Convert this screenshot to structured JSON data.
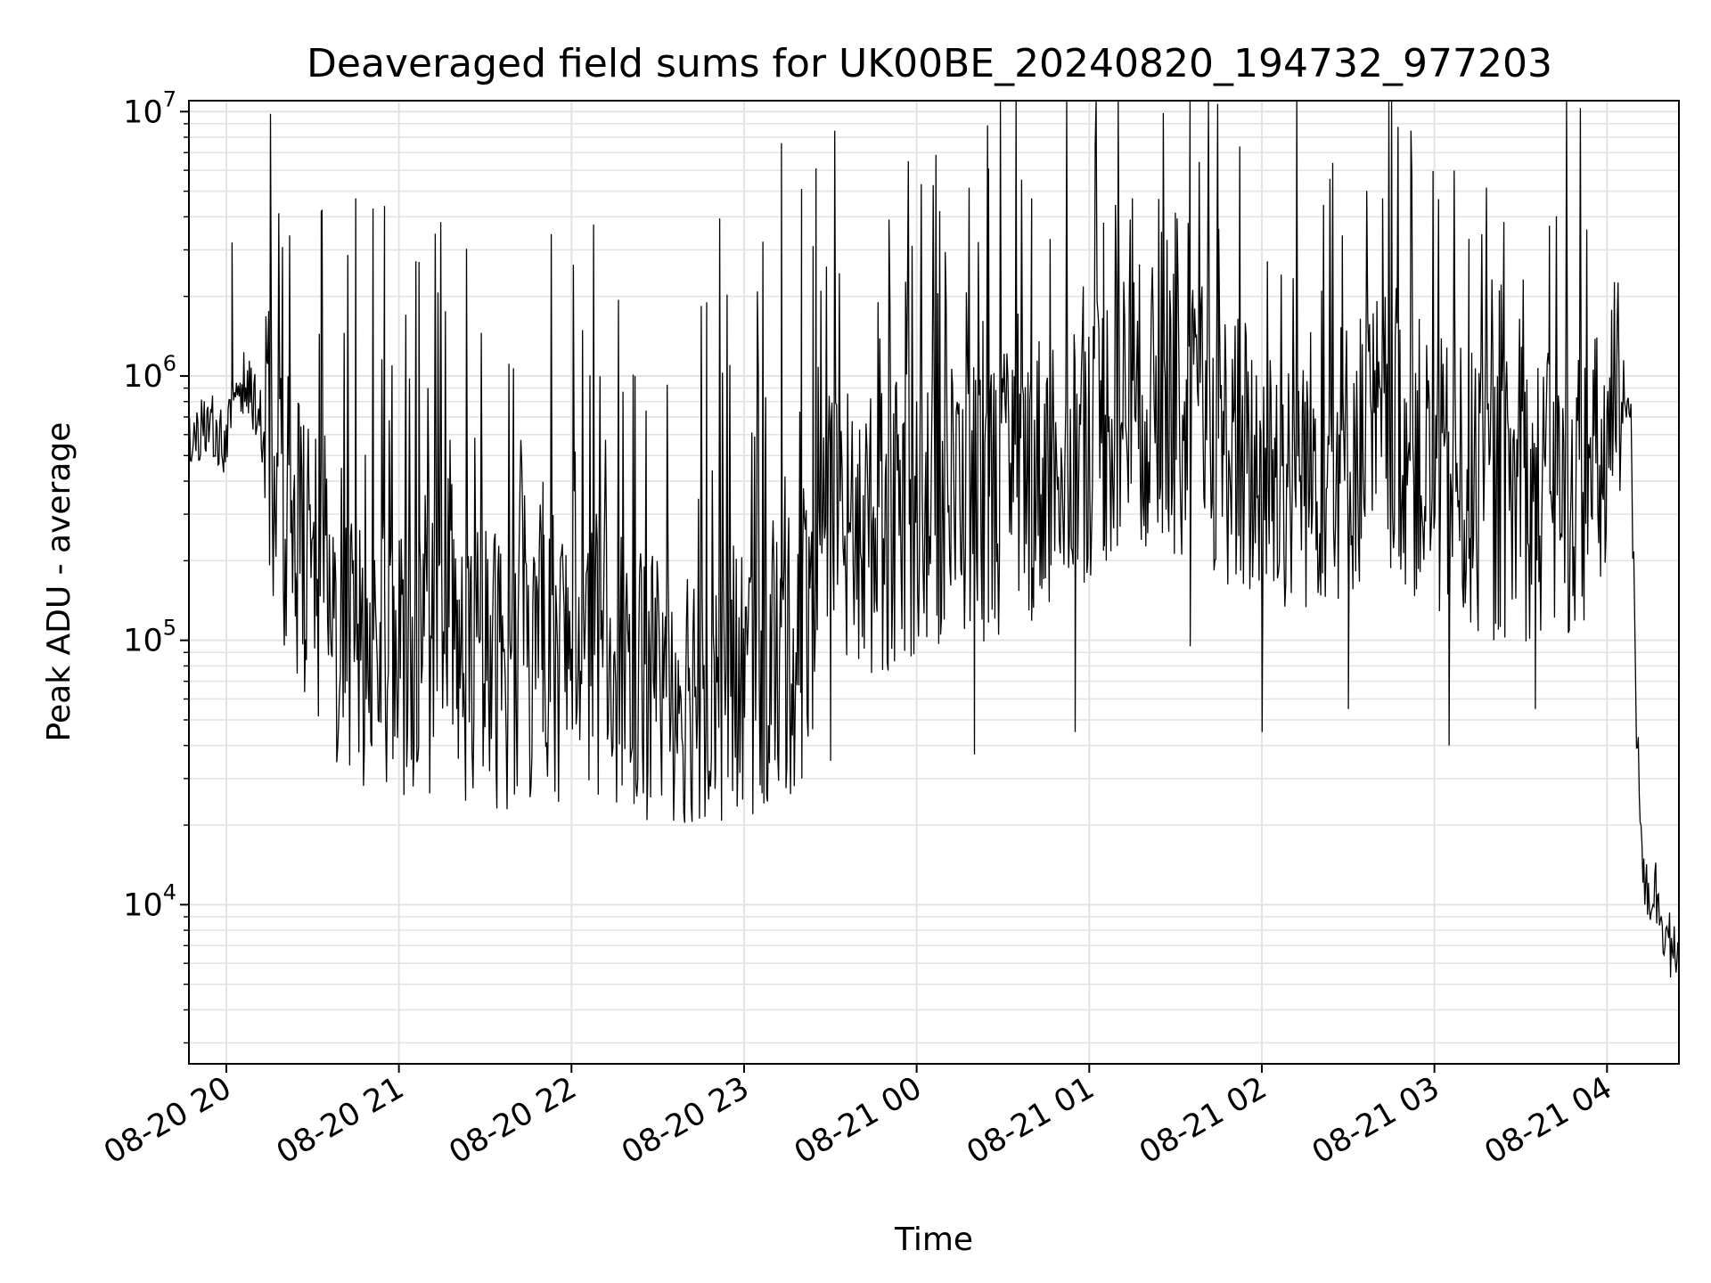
{
  "chart_data": {
    "type": "line",
    "title": "Deaveraged field sums for UK00BE_20240820_194732_977203",
    "xlabel": "Time",
    "ylabel": "Peak ADU - average",
    "yscale": "log",
    "ylim": [
      2500,
      11000000
    ],
    "xlim": [
      "2024-08-20 19:47",
      "2024-08-21 04:25"
    ],
    "grid": true,
    "line_color": "#000000",
    "grid_color": "#e3e3e3",
    "y_ticks": [
      {
        "value": 10000,
        "base": "10",
        "exp": "4"
      },
      {
        "value": 100000,
        "base": "10",
        "exp": "5"
      },
      {
        "value": 1000000,
        "base": "10",
        "exp": "6"
      },
      {
        "value": 10000000,
        "base": "10",
        "exp": "7"
      }
    ],
    "x_ticks": [
      {
        "t": "2024-08-20 20:00",
        "label": "08-20 20"
      },
      {
        "t": "2024-08-20 21:00",
        "label": "08-20 21"
      },
      {
        "t": "2024-08-20 22:00",
        "label": "08-20 22"
      },
      {
        "t": "2024-08-20 23:00",
        "label": "08-20 23"
      },
      {
        "t": "2024-08-21 00:00",
        "label": "08-21 00"
      },
      {
        "t": "2024-08-21 01:00",
        "label": "08-21 01"
      },
      {
        "t": "2024-08-21 02:00",
        "label": "08-21 02"
      },
      {
        "t": "2024-08-21 03:00",
        "label": "08-21 03"
      },
      {
        "t": "2024-08-21 04:00",
        "label": "08-21 04"
      }
    ],
    "series": [
      {
        "x": [
          "2024-08-20 19:47",
          "2024-08-20 19:55",
          "2024-08-20 20:00",
          "2024-08-20 20:03",
          "2024-08-20 20:06",
          "2024-08-20 20:10",
          "2024-08-20 20:15",
          "2024-08-20 20:20",
          "2024-08-20 20:25",
          "2024-08-20 20:30",
          "2024-08-20 20:35",
          "2024-08-20 20:40",
          "2024-08-20 20:50",
          "2024-08-20 21:00",
          "2024-08-20 21:15",
          "2024-08-20 21:30",
          "2024-08-20 21:45",
          "2024-08-20 22:00",
          "2024-08-20 22:15",
          "2024-08-20 22:30",
          "2024-08-20 22:45",
          "2024-08-20 23:00",
          "2024-08-20 23:15",
          "2024-08-20 23:30",
          "2024-08-20 23:45",
          "2024-08-21 00:00",
          "2024-08-21 00:15",
          "2024-08-21 00:30",
          "2024-08-21 00:45",
          "2024-08-21 01:00",
          "2024-08-21 01:15",
          "2024-08-21 01:30",
          "2024-08-21 01:45",
          "2024-08-21 02:00",
          "2024-08-21 02:15",
          "2024-08-21 02:30",
          "2024-08-21 02:45",
          "2024-08-21 03:00",
          "2024-08-21 03:15",
          "2024-08-21 03:30",
          "2024-08-21 03:45",
          "2024-08-21 04:00",
          "2024-08-21 04:05",
          "2024-08-21 04:08",
          "2024-08-21 04:10",
          "2024-08-21 04:13",
          "2024-08-21 04:17",
          "2024-08-21 04:21",
          "2024-08-21 04:25"
        ],
        "y": [
          600000,
          650000,
          550000,
          900000,
          950000,
          800000,
          500000,
          300000,
          250000,
          180000,
          120000,
          100000,
          90000,
          90000,
          85000,
          80000,
          80000,
          90000,
          85000,
          70000,
          70000,
          70000,
          80000,
          250000,
          250000,
          300000,
          350000,
          350000,
          450000,
          600000,
          800000,
          700000,
          600000,
          400000,
          450000,
          500000,
          650000,
          400000,
          350000,
          350000,
          350000,
          450000,
          850000,
          900000,
          60000,
          12000,
          11000,
          8000,
          5000
        ]
      },
      {
        "x": [
          "2024-08-20 20:02",
          "2024-08-20 20:22",
          "2024-08-20 20:33",
          "2024-08-20 20:45",
          "2024-08-20 20:51",
          "2024-08-20 20:55",
          "2024-08-20 21:07",
          "2024-08-20 22:47",
          "2024-08-20 23:13",
          "2024-08-20 23:20",
          "2024-08-20 23:24",
          "2024-08-20 23:25",
          "2024-08-21 00:25",
          "2024-08-21 00:40",
          "2024-08-21 01:05",
          "2024-08-21 01:15",
          "2024-08-21 01:45",
          "2024-08-21 02:28",
          "2024-08-21 02:42",
          "2024-08-21 03:12",
          "2024-08-21 03:40"
        ],
        "y": [
          3200000,
          3400000,
          4200000,
          4700000,
          4300000,
          4400000,
          2700000,
          1900000,
          7600000,
          5100000,
          3100000,
          6100000,
          6100000,
          4700000,
          3800000,
          4700000,
          3600000,
          3400000,
          4700000,
          3300000,
          3700000
        ]
      },
      {
        "x": [
          "2024-08-20 20:24",
          "2024-08-20 20:48",
          "2024-08-20 21:20",
          "2024-08-20 21:50",
          "2024-08-20 22:25",
          "2024-08-20 22:50",
          "2024-08-20 23:20",
          "2024-08-20 23:30",
          "2024-08-21 00:20",
          "2024-08-21 00:55",
          "2024-08-21 01:35",
          "2024-08-21 02:00",
          "2024-08-21 02:30",
          "2024-08-21 03:05",
          "2024-08-21 03:35"
        ],
        "y": [
          180000,
          60000,
          55000,
          45000,
          40000,
          32000,
          30000,
          35000,
          37000,
          45000,
          95000,
          45000,
          55000,
          40000,
          55000
        ]
      }
    ]
  }
}
